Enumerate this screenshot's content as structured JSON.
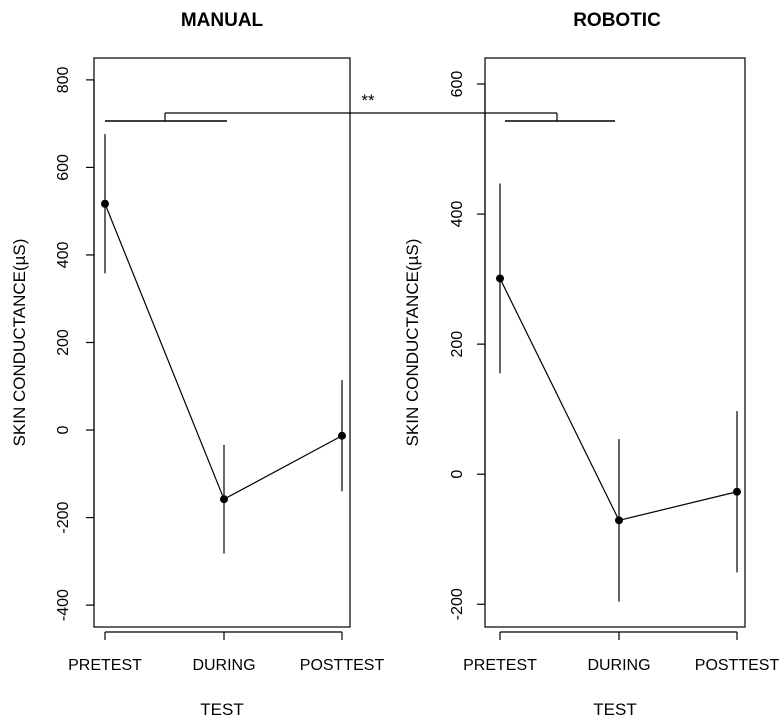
{
  "chart_data": [
    {
      "type": "line",
      "title": "MANUAL",
      "xlabel": "TEST",
      "ylabel": "SKIN CONDUCTANCE(µS)",
      "categories": [
        "PRETEST",
        "DURING",
        "POSTTEST"
      ],
      "yticks": [
        "-400",
        "-200",
        "0",
        "200",
        "400",
        "600",
        "800"
      ],
      "ylim": [
        -450,
        850
      ],
      "grid": false,
      "series": [
        {
          "values": [
            517,
            -158,
            -13
          ],
          "error_low": [
            358,
            -282,
            -140
          ],
          "error_high": [
            676,
            -34,
            114
          ],
          "color": "#000000"
        }
      ]
    },
    {
      "type": "line",
      "title": "ROBOTIC",
      "xlabel": "TEST",
      "ylabel": "SKIN CONDUCTANCE(µS)",
      "categories": [
        "PRETEST",
        "DURING",
        "POSTTEST"
      ],
      "yticks": [
        "-200",
        "0",
        "200",
        "400",
        "600"
      ],
      "ylim": [
        -235,
        640
      ],
      "grid": false,
      "series": [
        {
          "values": [
            301,
            -71,
            -27
          ],
          "error_low": [
            155,
            -196,
            -151
          ],
          "error_high": [
            447,
            54,
            97
          ],
          "color": "#000000"
        }
      ]
    }
  ],
  "significance": {
    "label": "**"
  }
}
